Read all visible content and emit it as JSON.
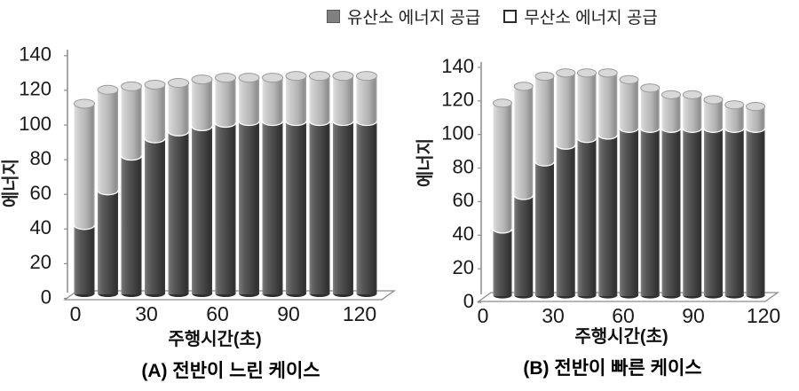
{
  "legend": {
    "items": [
      {
        "label": "유산소 에너지 공급",
        "swatch": "filled-square",
        "color": "#808080"
      },
      {
        "label": "무산소 에너지 공급",
        "swatch": "outline-square",
        "color": "#ffffff"
      }
    ]
  },
  "colors": {
    "aerobic_dark": "#4f4f4f",
    "anaerobic_light": "#bfbfbf",
    "axis": "#8c8c8c",
    "text": "#1a1a1a"
  },
  "chart_data": [
    {
      "type": "bar",
      "variant": "stacked-cylinder-3d",
      "title": "(A) 전반이 느린 케이스",
      "xlabel": "주행시간(초)",
      "ylabel": "에너지",
      "ylim": [
        0,
        140
      ],
      "yticks": [
        0,
        20,
        40,
        60,
        80,
        100,
        120,
        140
      ],
      "categories": [
        0,
        10,
        20,
        30,
        40,
        50,
        60,
        70,
        80,
        90,
        100,
        110,
        120
      ],
      "xtick_labels": [
        "0",
        "30",
        "60",
        "90",
        "120"
      ],
      "stacked": true,
      "legend_position": "top",
      "grid": false,
      "series": [
        {
          "name": "유산소 에너지 공급",
          "values": [
            40,
            60,
            80,
            90,
            94,
            97,
            99,
            100,
            100,
            100,
            100,
            100,
            100
          ]
        },
        {
          "name": "무산소 에너지 공급",
          "values": [
            70,
            58,
            40,
            31,
            28,
            27,
            26,
            25,
            25,
            26,
            26,
            26,
            26
          ]
        }
      ],
      "totals": [
        110,
        118,
        120,
        121,
        122,
        124,
        125,
        125,
        125,
        126,
        126,
        126,
        126
      ]
    },
    {
      "type": "bar",
      "variant": "stacked-cylinder-3d",
      "title": "(B) 전반이 빠른 케이스",
      "xlabel": "주행시간(초)",
      "ylabel": "에너지",
      "ylim": [
        0,
        140
      ],
      "yticks": [
        0,
        20,
        40,
        60,
        80,
        100,
        120,
        140
      ],
      "categories": [
        0,
        10,
        20,
        30,
        40,
        50,
        60,
        70,
        80,
        90,
        100,
        110,
        120
      ],
      "xtick_labels": [
        "0",
        "30",
        "60",
        "90",
        "120"
      ],
      "stacked": true,
      "legend_position": "top",
      "grid": false,
      "series": [
        {
          "name": "유산소 에너지 공급",
          "values": [
            40,
            60,
            80,
            90,
            94,
            96,
            100,
            100,
            100,
            100,
            100,
            100,
            100
          ]
        },
        {
          "name": "무산소 에너지 공급",
          "values": [
            75,
            65,
            51,
            43,
            39,
            37,
            29,
            24,
            20,
            20,
            17,
            14,
            13
          ]
        }
      ],
      "totals": [
        115,
        125,
        131,
        133,
        133,
        133,
        129,
        124,
        120,
        120,
        117,
        114,
        113
      ]
    }
  ]
}
